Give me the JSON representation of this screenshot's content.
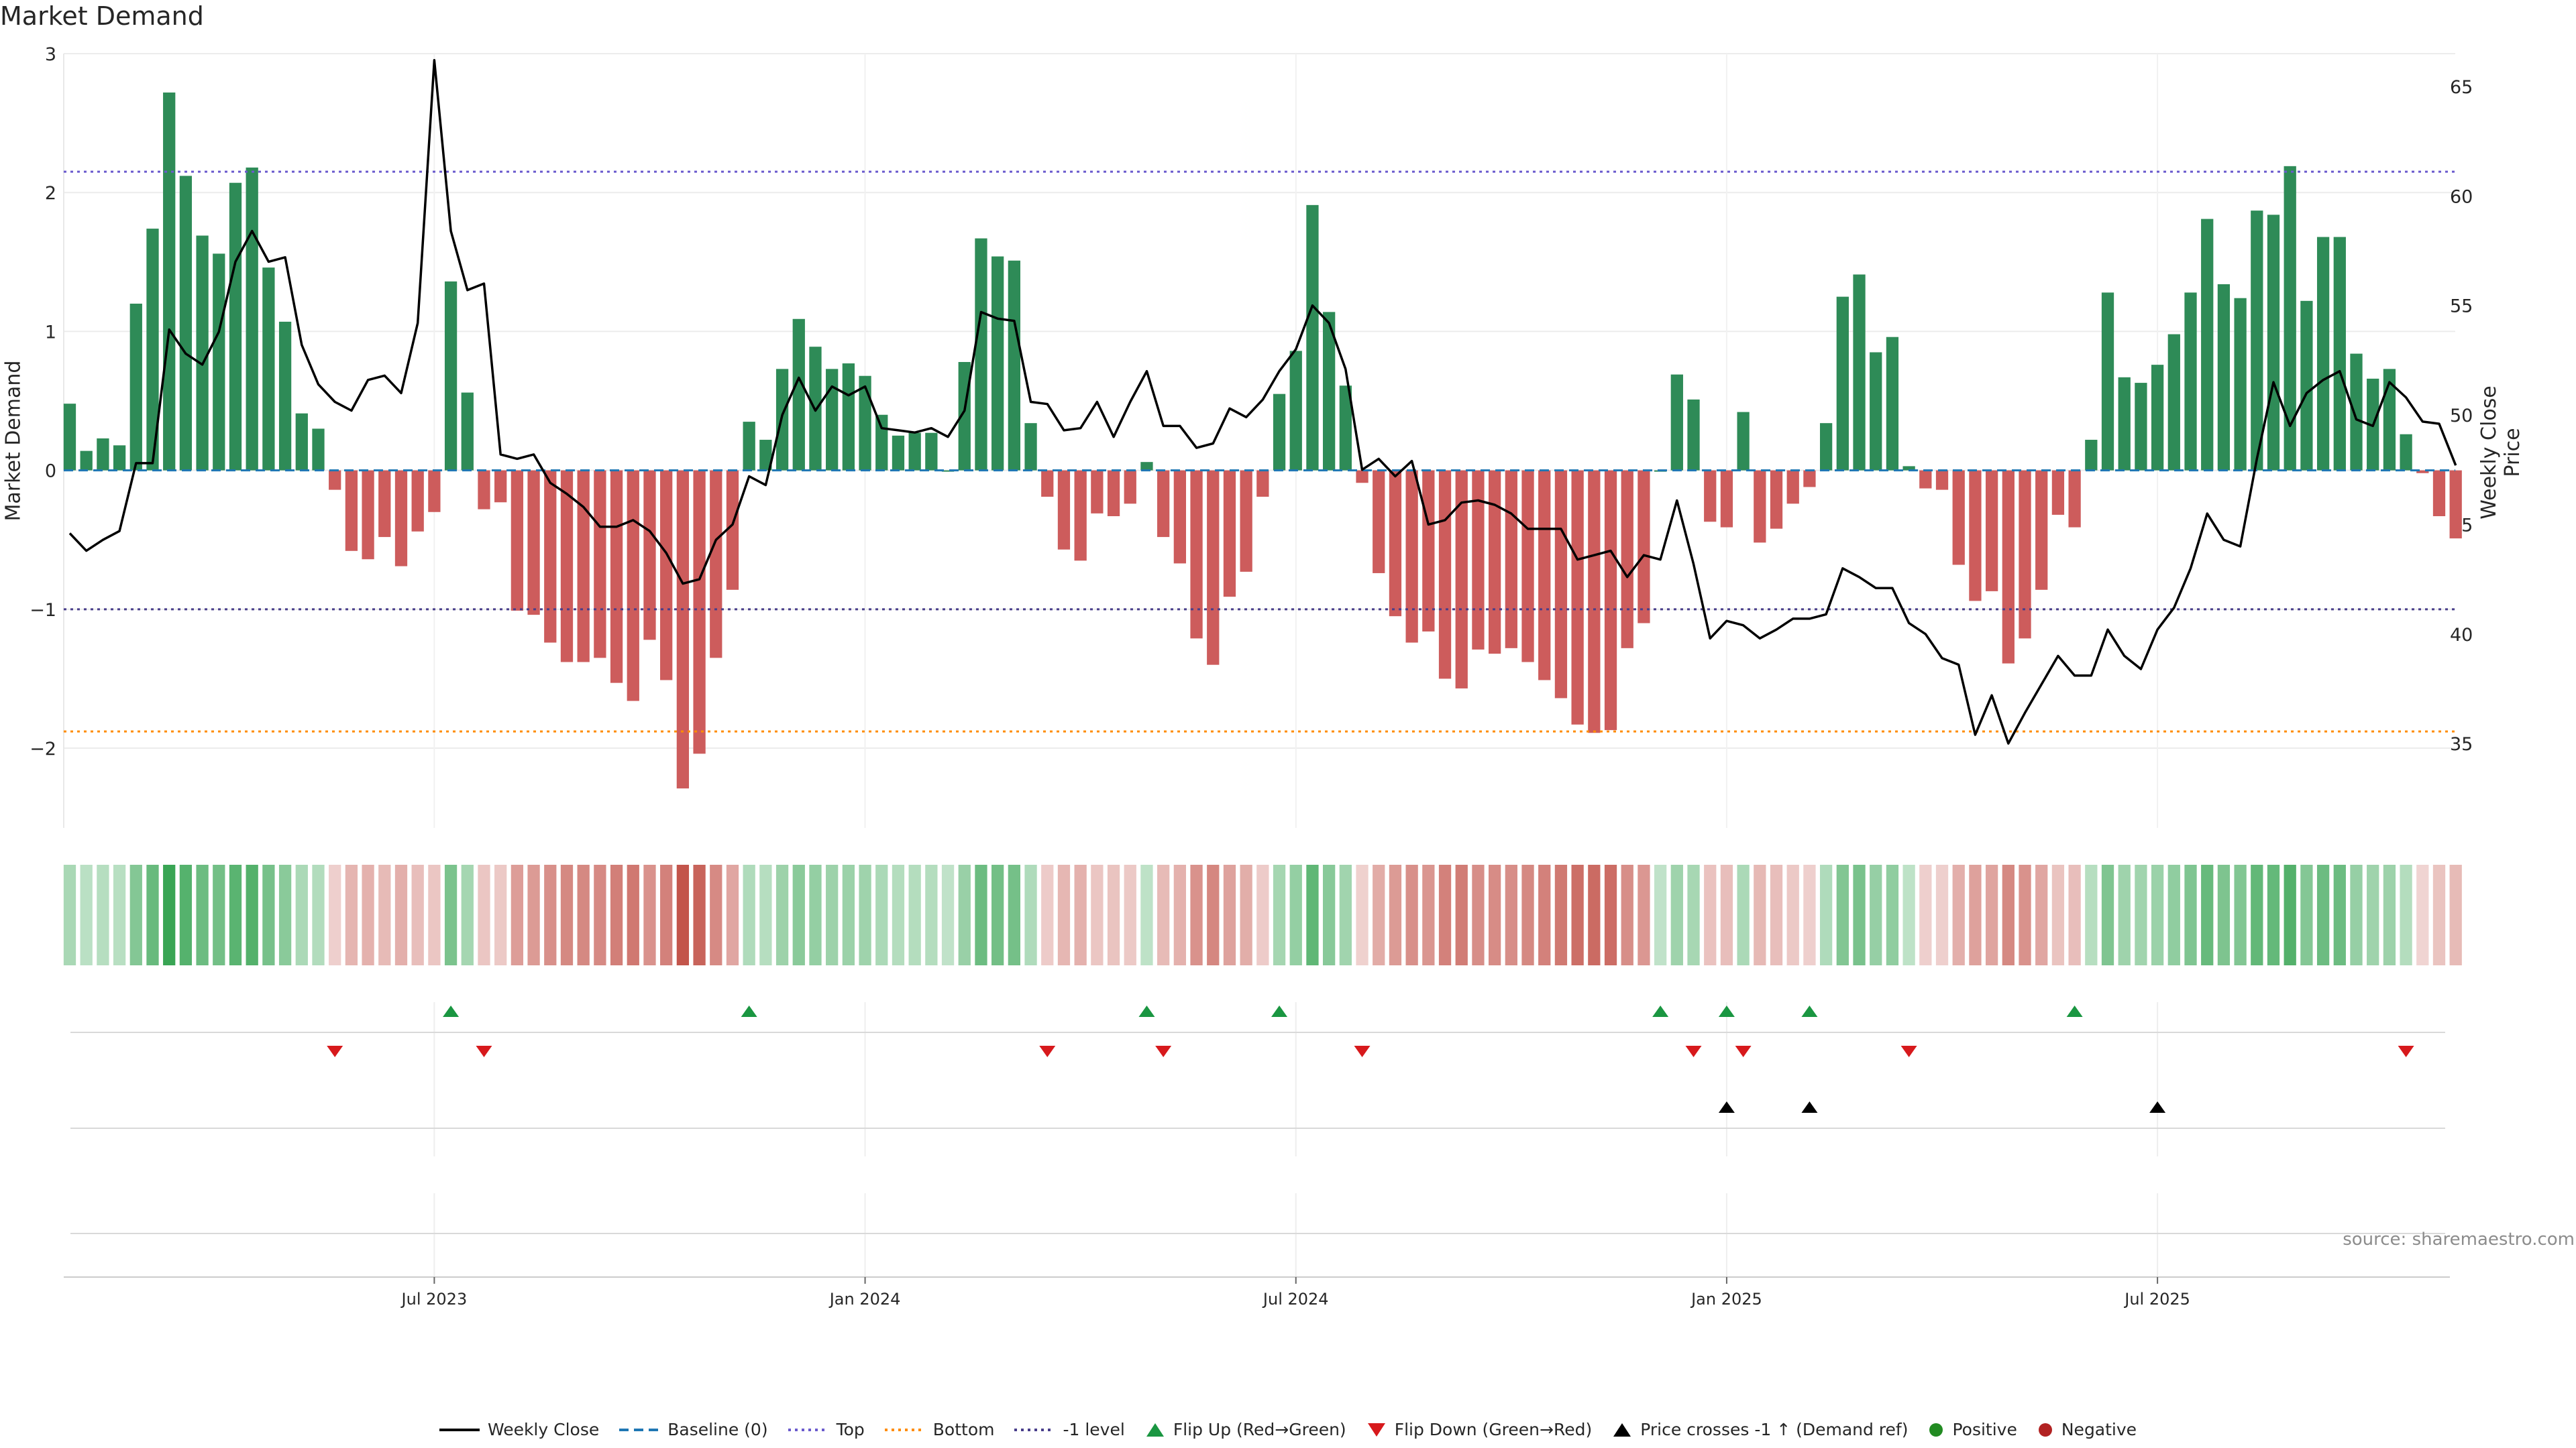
{
  "title": "Market Demand",
  "source": "source: sharemaestro.com",
  "colors": {
    "green": "#2e8b57",
    "red": "#cd5c5c",
    "line": "#000000",
    "top": "#6a5acd",
    "bottom": "#ff8c00",
    "minus1": "#483d8b",
    "flip_up": "#1a9641",
    "flip_down": "#d7191c",
    "baseline": "#1f77b4"
  },
  "legend": [
    {
      "label": "Weekly Close",
      "icon": "solid-line-icon"
    },
    {
      "label": "Baseline (0)",
      "icon": "dashed-line-icon"
    },
    {
      "label": "Top",
      "icon": "dotted-line-icon"
    },
    {
      "label": "Bottom",
      "icon": "dotted-line-icon"
    },
    {
      "label": "-1 level",
      "icon": "dotted-line-icon"
    },
    {
      "label": "Flip Up (Red→Green)",
      "icon": "triangle-up-icon"
    },
    {
      "label": "Flip Down (Green→Red)",
      "icon": "triangle-down-icon"
    },
    {
      "label": "Price crosses -1 ↑ (Demand ref)",
      "icon": "triangle-up-icon"
    },
    {
      "label": "Positive",
      "icon": "circle-icon"
    },
    {
      "label": "Negative",
      "icon": "circle-icon"
    }
  ],
  "chart_data": {
    "type": "bar",
    "title": "Market Demand",
    "ylabel": "Market Demand",
    "y2label": "Weekly Close Price",
    "ylim": [
      -2.55,
      3.0
    ],
    "y2lim": [
      31.3,
      66.5
    ],
    "yticks": [
      "−2",
      "−1",
      "0",
      "1",
      "2",
      "3"
    ],
    "ytick_values": [
      -2,
      -1,
      0,
      1,
      2,
      3
    ],
    "y2ticks": [
      "35",
      "40",
      "45",
      "50",
      "55",
      "60",
      "65"
    ],
    "y2tick_values": [
      35,
      40,
      45,
      50,
      55,
      60,
      65
    ],
    "xticks": [
      "Jul 2023",
      "Jan 2024",
      "Jul 2024",
      "Jan 2025",
      "Jul 2025"
    ],
    "xtick_weeks": [
      22,
      48,
      74,
      100,
      126
    ],
    "reference_lines": {
      "baseline": 0,
      "top": 2.15,
      "bottom": -1.88,
      "minus1": -1.0
    },
    "weeks": 144,
    "demand": [
      0.48,
      0.14,
      0.23,
      0.18,
      1.2,
      1.74,
      2.72,
      2.12,
      1.69,
      1.56,
      2.07,
      2.18,
      1.46,
      1.07,
      0.41,
      0.3,
      -0.14,
      -0.58,
      -0.64,
      -0.48,
      -0.69,
      -0.44,
      -0.3,
      1.36,
      0.56,
      -0.28,
      -0.23,
      -1.01,
      -1.04,
      -1.24,
      -1.38,
      -1.38,
      -1.35,
      -1.53,
      -1.66,
      -1.22,
      -1.51,
      -2.29,
      -2.04,
      -1.35,
      -0.86,
      0.35,
      0.22,
      0.73,
      1.09,
      0.89,
      0.73,
      0.77,
      0.68,
      0.4,
      0.25,
      0.27,
      0.27,
      0.0,
      0.78,
      1.67,
      1.54,
      1.51,
      0.34,
      -0.19,
      -0.57,
      -0.65,
      -0.31,
      -0.33,
      -0.24,
      0.06,
      -0.48,
      -0.67,
      -1.21,
      -1.4,
      -0.91,
      -0.73,
      -0.19,
      0.55,
      0.86,
      1.91,
      1.14,
      0.61,
      -0.09,
      -0.74,
      -1.05,
      -1.24,
      -1.16,
      -1.5,
      -1.57,
      -1.29,
      -1.32,
      -1.28,
      -1.38,
      -1.51,
      -1.64,
      -1.83,
      -1.89,
      -1.87,
      -1.28,
      -1.1,
      0.0,
      0.69,
      0.51,
      -0.37,
      -0.41,
      0.42,
      -0.52,
      -0.42,
      -0.24,
      -0.12,
      0.34,
      1.25,
      1.41,
      0.85,
      0.96,
      0.03,
      -0.13,
      -0.14,
      -0.68,
      -0.94,
      -0.87,
      -1.39,
      -1.21,
      -0.86,
      -0.32,
      -0.41,
      0.22,
      1.28,
      0.67,
      0.63,
      0.76,
      0.98,
      1.28,
      1.81,
      1.34,
      1.24,
      1.87,
      1.84,
      2.19,
      1.22,
      1.68,
      1.68,
      0.84,
      0.66,
      0.73,
      0.26,
      -0.02,
      -0.33,
      -0.49
    ],
    "weekly_close": [
      44.6,
      43.8,
      44.3,
      44.7,
      47.8,
      47.8,
      53.9,
      52.8,
      52.3,
      53.8,
      57.0,
      58.4,
      57.0,
      57.2,
      53.2,
      51.4,
      50.6,
      50.2,
      51.6,
      51.8,
      51.0,
      54.2,
      66.2,
      58.4,
      55.7,
      56.0,
      48.2,
      48.0,
      48.2,
      46.9,
      46.4,
      45.8,
      44.9,
      44.9,
      45.2,
      44.7,
      43.7,
      42.3,
      42.5,
      44.3,
      45.0,
      47.2,
      46.8,
      50.0,
      51.7,
      50.2,
      51.3,
      50.9,
      51.3,
      49.4,
      49.3,
      49.2,
      49.4,
      49.0,
      50.2,
      54.7,
      54.4,
      54.3,
      50.6,
      50.5,
      49.3,
      49.4,
      50.6,
      49.0,
      50.6,
      52.0,
      49.5,
      49.5,
      48.5,
      48.7,
      50.3,
      49.9,
      50.7,
      52.0,
      53.0,
      55.0,
      54.2,
      52.1,
      47.5,
      48.0,
      47.2,
      47.9,
      45.0,
      45.2,
      46.0,
      46.1,
      45.9,
      45.5,
      44.8,
      44.8,
      44.8,
      43.4,
      43.6,
      43.8,
      42.6,
      43.6,
      43.4,
      46.1,
      43.2,
      39.8,
      40.6,
      40.4,
      39.8,
      40.2,
      40.7,
      40.7,
      40.9,
      43.0,
      42.6,
      42.1,
      42.1,
      40.5,
      40.0,
      38.9,
      38.6,
      35.4,
      37.2,
      35.0,
      36.4,
      37.7,
      39.0,
      38.1,
      38.1,
      40.2,
      39.0,
      38.4,
      40.2,
      41.2,
      43.0,
      45.5,
      44.3,
      44.0,
      48.0,
      51.5,
      49.5,
      51.0,
      51.6,
      52.0,
      49.8,
      49.5,
      51.5,
      50.8,
      49.7,
      49.6,
      47.7
    ]
  },
  "event_rows": {
    "flip_up_weeks": [
      23,
      41,
      65,
      73,
      96,
      100,
      105,
      121
    ],
    "flip_down_weeks": [
      16,
      25,
      59,
      66,
      78,
      98,
      101,
      111,
      141
    ],
    "price_cross_weeks": [
      100,
      105,
      126
    ]
  }
}
